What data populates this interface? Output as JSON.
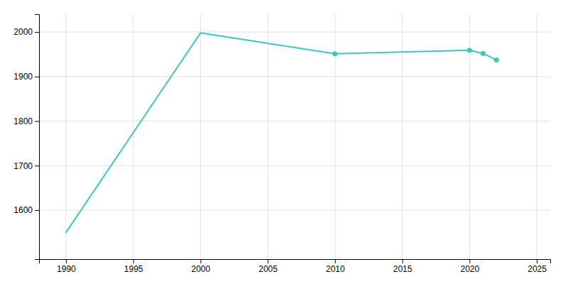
{
  "chart_data": {
    "type": "line",
    "x": [
      1990,
      2000,
      2010,
      2020,
      2021,
      2022
    ],
    "series": [
      {
        "type": "line",
        "color": "#3dc8c0",
        "values": [
          1550,
          1998,
          1951,
          1959,
          1952,
          1937
        ]
      },
      {
        "type": "scatter",
        "color": "#3dc8c0",
        "marker": "circle",
        "values": [
          null,
          null,
          1951,
          1959,
          1952,
          1937
        ]
      }
    ],
    "xlim": [
      1988,
      2026
    ],
    "ylim": [
      1490,
      2040
    ],
    "xticks": [
      1990,
      1995,
      2000,
      2005,
      2010,
      2015,
      2020,
      2025
    ],
    "yticks": [
      1600,
      1700,
      1800,
      1900,
      2000
    ],
    "grid": true
  }
}
